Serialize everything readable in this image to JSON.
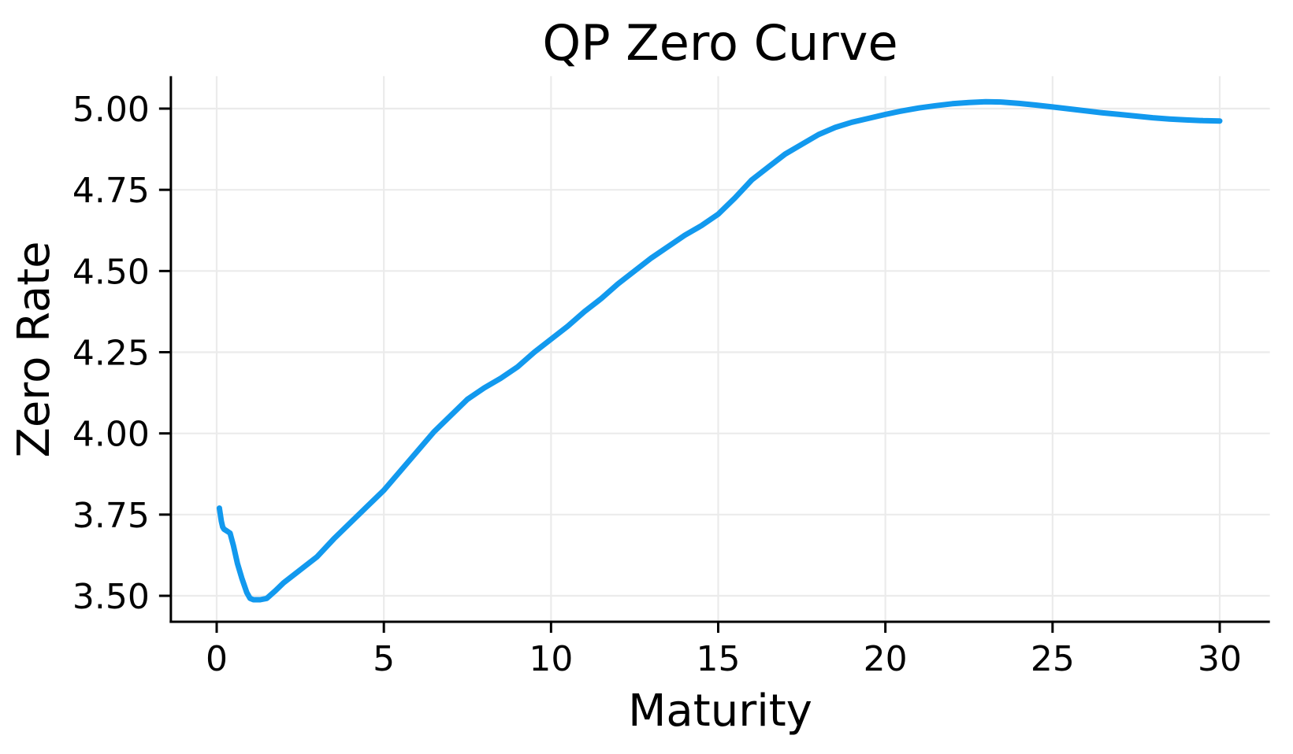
{
  "chart_data": {
    "type": "line",
    "title": "QP Zero Curve",
    "xlabel": "Maturity",
    "ylabel": "Zero Rate",
    "xlim": [
      -1.37,
      31.5
    ],
    "ylim": [
      3.42,
      5.1
    ],
    "xticks": [
      0,
      5,
      10,
      15,
      20,
      25,
      30
    ],
    "xtick_labels": [
      "0",
      "5",
      "10",
      "15",
      "20",
      "25",
      "30"
    ],
    "yticks": [
      3.5,
      3.75,
      4.0,
      4.25,
      4.5,
      4.75,
      5.0
    ],
    "ytick_labels": [
      "3.50",
      "3.75",
      "4.00",
      "4.25",
      "4.50",
      "4.75",
      "5.00"
    ],
    "grid": true,
    "legend": false,
    "colors": {
      "line": "#1299EE",
      "grid": "#EBEBEB",
      "axis": "#000000",
      "background": "#FFFFFF"
    },
    "series": [
      {
        "name": "zero_rate",
        "points": [
          [
            0.08,
            3.77
          ],
          [
            0.14,
            3.73
          ],
          [
            0.18,
            3.712
          ],
          [
            0.22,
            3.705
          ],
          [
            0.3,
            3.7
          ],
          [
            0.4,
            3.693
          ],
          [
            0.5,
            3.655
          ],
          [
            0.62,
            3.6
          ],
          [
            0.75,
            3.555
          ],
          [
            0.9,
            3.51
          ],
          [
            1.0,
            3.492
          ],
          [
            1.1,
            3.488
          ],
          [
            1.3,
            3.488
          ],
          [
            1.5,
            3.492
          ],
          [
            1.75,
            3.515
          ],
          [
            2.0,
            3.54
          ],
          [
            2.5,
            3.58
          ],
          [
            3.0,
            3.62
          ],
          [
            3.5,
            3.675
          ],
          [
            4.0,
            3.725
          ],
          [
            4.5,
            3.775
          ],
          [
            5.0,
            3.825
          ],
          [
            5.5,
            3.885
          ],
          [
            6.0,
            3.945
          ],
          [
            6.5,
            4.005
          ],
          [
            7.0,
            4.055
          ],
          [
            7.5,
            4.105
          ],
          [
            8.0,
            4.14
          ],
          [
            8.5,
            4.17
          ],
          [
            9.0,
            4.205
          ],
          [
            9.5,
            4.25
          ],
          [
            10.0,
            4.29
          ],
          [
            10.5,
            4.33
          ],
          [
            11.0,
            4.375
          ],
          [
            11.5,
            4.415
          ],
          [
            12.0,
            4.46
          ],
          [
            12.5,
            4.5
          ],
          [
            13.0,
            4.54
          ],
          [
            13.5,
            4.575
          ],
          [
            14.0,
            4.61
          ],
          [
            14.5,
            4.64
          ],
          [
            15.0,
            4.675
          ],
          [
            15.5,
            4.725
          ],
          [
            16.0,
            4.78
          ],
          [
            16.5,
            4.82
          ],
          [
            17.0,
            4.86
          ],
          [
            17.5,
            4.89
          ],
          [
            18.0,
            4.92
          ],
          [
            18.5,
            4.942
          ],
          [
            19.0,
            4.958
          ],
          [
            19.5,
            4.97
          ],
          [
            20.0,
            4.982
          ],
          [
            20.5,
            4.993
          ],
          [
            21.0,
            5.002
          ],
          [
            21.5,
            5.009
          ],
          [
            22.0,
            5.015
          ],
          [
            22.5,
            5.019
          ],
          [
            23.0,
            5.021
          ],
          [
            23.5,
            5.02
          ],
          [
            24.0,
            5.016
          ],
          [
            24.5,
            5.011
          ],
          [
            25.0,
            5.005
          ],
          [
            25.5,
            4.999
          ],
          [
            26.0,
            4.993
          ],
          [
            26.5,
            4.987
          ],
          [
            27.0,
            4.982
          ],
          [
            27.5,
            4.977
          ],
          [
            28.0,
            4.972
          ],
          [
            28.5,
            4.968
          ],
          [
            29.0,
            4.965
          ],
          [
            29.5,
            4.963
          ],
          [
            30.0,
            4.962
          ]
        ]
      }
    ]
  }
}
